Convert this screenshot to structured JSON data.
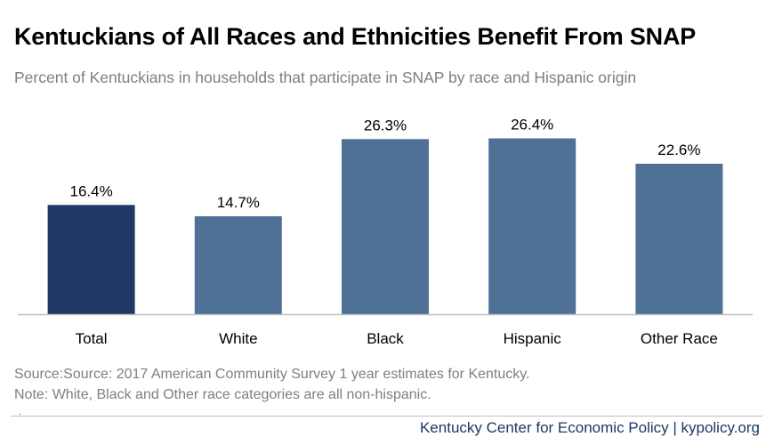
{
  "header": {
    "title": "Kentuckians of All Races and Ethnicities Benefit From SNAP",
    "subtitle": "Percent of Kentuckians in households that participate in SNAP by race and Hispanic origin"
  },
  "chart_data": {
    "type": "bar",
    "categories": [
      "Total",
      "White",
      "Black",
      "Hispanic",
      "Other Race"
    ],
    "values": [
      16.4,
      14.7,
      26.3,
      26.4,
      22.6
    ],
    "data_labels": [
      "16.4%",
      "14.7%",
      "26.3%",
      "26.4%",
      "22.6%"
    ],
    "ylim": [
      0,
      30
    ],
    "grid": false,
    "colors": {
      "highlight": "#1f3864",
      "default": "#4f7196",
      "baseline": "#bfbfbf"
    },
    "highlight_index": 0
  },
  "notes": {
    "source": "Source:Source: 2017 American Community Survey 1 year estimates for Kentucky.",
    "note": "Note: White, Black and Other race categories are all non-hispanic."
  },
  "footer": {
    "mark": ".",
    "credit": "Kentucky Center for Economic Policy | kypolicy.org"
  }
}
